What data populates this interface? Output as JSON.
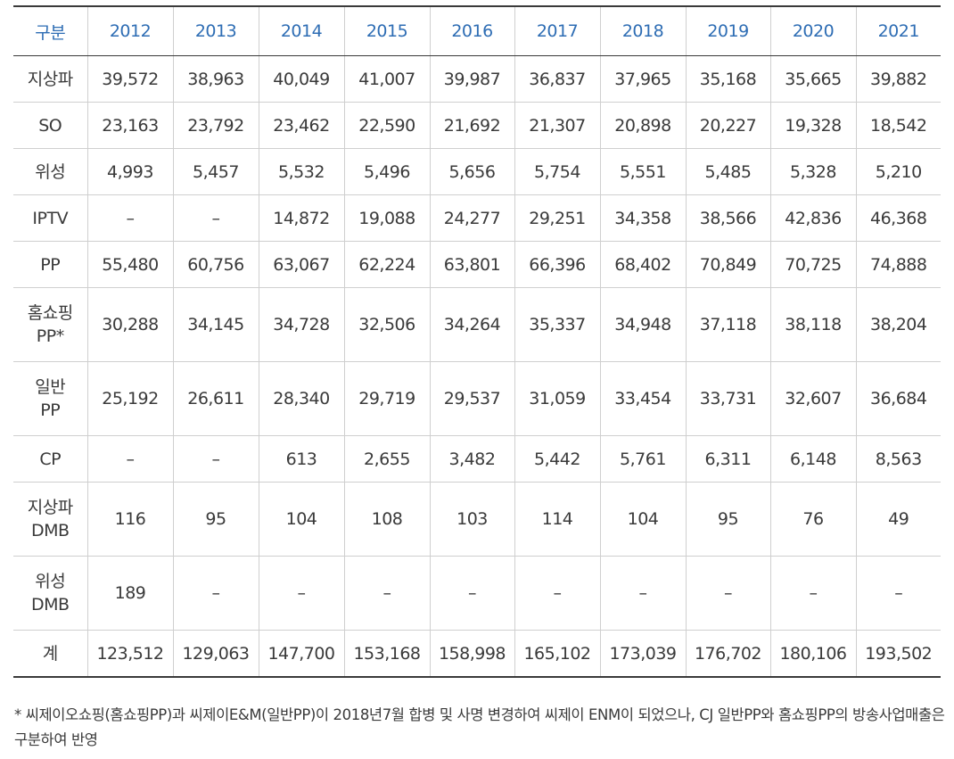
{
  "table": {
    "header": [
      "구분",
      "2012",
      "2013",
      "2014",
      "2015",
      "2016",
      "2017",
      "2018",
      "2019",
      "2020",
      "2021"
    ],
    "rows": [
      {
        "label": "지상파",
        "tall": false,
        "values": [
          "39,572",
          "38,963",
          "40,049",
          "41,007",
          "39,987",
          "36,837",
          "37,965",
          "35,168",
          "35,665",
          "39,882"
        ]
      },
      {
        "label": "SO",
        "tall": false,
        "values": [
          "23,163",
          "23,792",
          "23,462",
          "22,590",
          "21,692",
          "21,307",
          "20,898",
          "20,227",
          "19,328",
          "18,542"
        ]
      },
      {
        "label": "위성",
        "tall": false,
        "values": [
          "4,993",
          "5,457",
          "5,532",
          "5,496",
          "5,656",
          "5,754",
          "5,551",
          "5,485",
          "5,328",
          "5,210"
        ]
      },
      {
        "label": "IPTV",
        "tall": false,
        "values": [
          "–",
          "–",
          "14,872",
          "19,088",
          "24,277",
          "29,251",
          "34,358",
          "38,566",
          "42,836",
          "46,368"
        ]
      },
      {
        "label": "PP",
        "tall": false,
        "values": [
          "55,480",
          "60,756",
          "63,067",
          "62,224",
          "63,801",
          "66,396",
          "68,402",
          "70,849",
          "70,725",
          "74,888"
        ]
      },
      {
        "label": "홈쇼핑\nPP*",
        "tall": true,
        "values": [
          "30,288",
          "34,145",
          "34,728",
          "32,506",
          "34,264",
          "35,337",
          "34,948",
          "37,118",
          "38,118",
          "38,204"
        ]
      },
      {
        "label": "일반\nPP",
        "tall": true,
        "values": [
          "25,192",
          "26,611",
          "28,340",
          "29,719",
          "29,537",
          "31,059",
          "33,454",
          "33,731",
          "32,607",
          "36,684"
        ]
      },
      {
        "label": "CP",
        "tall": false,
        "values": [
          "–",
          "–",
          "613",
          "2,655",
          "3,482",
          "5,442",
          "5,761",
          "6,311",
          "6,148",
          "8,563"
        ]
      },
      {
        "label": "지상파\nDMB",
        "tall": true,
        "values": [
          "116",
          "95",
          "104",
          "108",
          "103",
          "114",
          "104",
          "95",
          "76",
          "49"
        ]
      },
      {
        "label": "위성\nDMB",
        "tall": true,
        "values": [
          "189",
          "–",
          "–",
          "–",
          "–",
          "–",
          "–",
          "–",
          "–",
          "–"
        ]
      },
      {
        "label": "계",
        "tall": false,
        "values": [
          "123,512",
          "129,063",
          "147,700",
          "153,168",
          "158,998",
          "165,102",
          "173,039",
          "176,702",
          "180,106",
          "193,502"
        ]
      }
    ]
  },
  "footnote": "* 씨제이오쇼핑(홈쇼핑PP)과 씨제이E&M(일반PP)이 2018년7월 합병 및 사명 변경하여 씨제이 ENM이 되었으나, CJ 일반PP와 홈쇼핑PP의 방송사업매출은 구분하여 반영",
  "colors": {
    "header_text": "#2e6db4",
    "body_text": "#3a3a3a",
    "rule": "#3a3a3a",
    "grid": "#cfcfcf"
  }
}
